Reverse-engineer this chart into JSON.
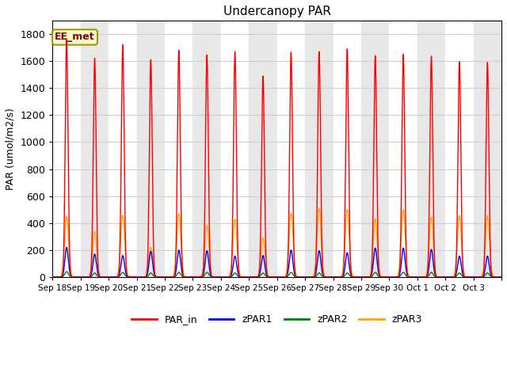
{
  "title": "Undercanopy PAR",
  "ylabel": "PAR (umol/m2/s)",
  "annotation": "EE_met",
  "ylim": [
    0,
    1900
  ],
  "yticks": [
    0,
    200,
    400,
    600,
    800,
    1000,
    1200,
    1400,
    1600,
    1800
  ],
  "x_labels": [
    "Sep 18",
    "Sep 19",
    "Sep 20",
    "Sep 21",
    "Sep 22",
    "Sep 23",
    "Sep 24",
    "Sep 25",
    "Sep 26",
    "Sep 27",
    "Sep 28",
    "Sep 29",
    "Sep 30",
    "Oct 1",
    "Oct 2",
    "Oct 3"
  ],
  "colors": {
    "PAR_in": "red",
    "zPAR1": "blue",
    "zPAR2": "green",
    "zPAR3": "orange"
  },
  "legend_labels": [
    "PAR_in",
    "zPAR1",
    "zPAR2",
    "zPAR3"
  ],
  "n_days": 16,
  "points_per_day": 288,
  "peak_PAR_in": [
    1760,
    1620,
    1720,
    1610,
    1680,
    1645,
    1670,
    1490,
    1665,
    1670,
    1690,
    1640,
    1650,
    1635,
    1595,
    1590
  ],
  "peak_zPAR1": [
    220,
    170,
    160,
    190,
    200,
    195,
    155,
    160,
    200,
    195,
    180,
    215,
    215,
    205,
    155,
    155
  ],
  "peak_zPAR2": [
    40,
    30,
    35,
    30,
    35,
    35,
    30,
    30,
    35,
    30,
    30,
    35,
    35,
    35,
    30,
    30
  ],
  "peak_zPAR3": [
    450,
    340,
    460,
    220,
    470,
    385,
    430,
    290,
    475,
    510,
    500,
    430,
    500,
    445,
    455,
    455
  ],
  "band_colors": [
    "#ffffff",
    "#e8e8e8"
  ]
}
